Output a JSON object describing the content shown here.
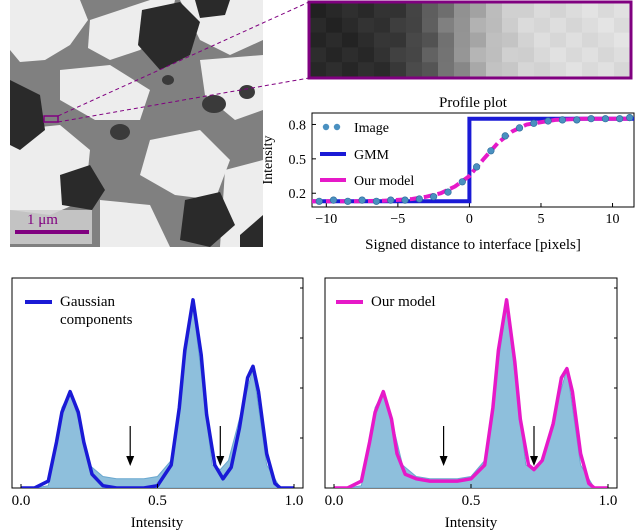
{
  "colors": {
    "purple": "#800080",
    "gmm_blue": "#1a1ad6",
    "model_magenta": "#e619c8",
    "image_dots": "#4a90c0",
    "hist_fill": "#8ebfdc",
    "hist_stroke": "#6aa8cf"
  },
  "micrograph": {
    "scalebar_label": "1 μm"
  },
  "chart_data": [
    {
      "type": "line",
      "title": "Profile plot",
      "xlabel": "Signed distance to interface [pixels]",
      "ylabel": "Intensity",
      "xlim": [
        -11,
        11.5
      ],
      "ylim": [
        0.08,
        0.9
      ],
      "xticks": [
        -10,
        -5,
        0,
        5,
        10
      ],
      "xtick_labels": [
        "−10",
        "−5",
        "0",
        "5",
        "10"
      ],
      "yticks": [
        0.2,
        0.5,
        0.8
      ],
      "ytick_labels": [
        "0.2",
        "0.5",
        "0.8"
      ],
      "legend_position": "top-left",
      "series": [
        {
          "name": "Image",
          "style": "markers",
          "x": [
            -10.5,
            -9.5,
            -8.5,
            -7.5,
            -6.5,
            -5.5,
            -4.5,
            -3.5,
            -2.5,
            -1.5,
            -0.5,
            0.5,
            1.5,
            2.5,
            3.5,
            4.5,
            5.5,
            6.5,
            7.5,
            8.5,
            9.5,
            10.5,
            11.2
          ],
          "y": [
            0.13,
            0.14,
            0.13,
            0.14,
            0.13,
            0.14,
            0.14,
            0.15,
            0.17,
            0.21,
            0.3,
            0.43,
            0.57,
            0.7,
            0.77,
            0.81,
            0.83,
            0.84,
            0.84,
            0.85,
            0.85,
            0.85,
            0.86
          ]
        },
        {
          "name": "GMM",
          "style": "step",
          "x": [
            -11,
            0,
            0,
            11.5
          ],
          "y": [
            0.13,
            0.13,
            0.85,
            0.85
          ]
        },
        {
          "name": "Our model",
          "style": "dashed",
          "x": [
            -11,
            -8,
            -6,
            -4,
            -3,
            -2,
            -1,
            0,
            1,
            2,
            3,
            4,
            6,
            8,
            11.5
          ],
          "y": [
            0.13,
            0.13,
            0.135,
            0.15,
            0.17,
            0.2,
            0.26,
            0.35,
            0.5,
            0.64,
            0.74,
            0.8,
            0.84,
            0.85,
            0.85
          ]
        }
      ]
    },
    {
      "type": "area",
      "xlabel": "Intensity",
      "xlim": [
        0,
        1
      ],
      "xticks": [
        0,
        0.5,
        1
      ],
      "xtick_labels": [
        "0.0",
        "0.5",
        "1.0"
      ],
      "legend_position": "top-left",
      "legend": [
        "Gaussian",
        "components"
      ],
      "peaks": [
        0.18,
        0.63,
        0.85
      ],
      "arrows_at": [
        0.4,
        0.73
      ],
      "series": [
        {
          "name": "histogram",
          "x": [
            0,
            0.05,
            0.1,
            0.15,
            0.18,
            0.21,
            0.25,
            0.3,
            0.35,
            0.4,
            0.45,
            0.5,
            0.55,
            0.6,
            0.63,
            0.66,
            0.7,
            0.73,
            0.76,
            0.8,
            0.85,
            0.9,
            0.95,
            1
          ],
          "y": [
            0,
            0.0,
            0.01,
            0.35,
            0.42,
            0.3,
            0.1,
            0.05,
            0.04,
            0.04,
            0.04,
            0.05,
            0.12,
            0.55,
            0.8,
            0.5,
            0.1,
            0.08,
            0.12,
            0.3,
            0.52,
            0.1,
            0.0,
            0
          ]
        },
        {
          "name": "Gaussian components",
          "x": [
            0,
            0.05,
            0.1,
            0.13,
            0.15,
            0.18,
            0.21,
            0.23,
            0.26,
            0.3,
            0.35,
            0.4,
            0.45,
            0.5,
            0.55,
            0.58,
            0.6,
            0.63,
            0.66,
            0.68,
            0.71,
            0.74,
            0.77,
            0.8,
            0.83,
            0.85,
            0.87,
            0.9,
            0.93,
            0.95,
            1
          ],
          "y": [
            0,
            0.0,
            0.03,
            0.2,
            0.33,
            0.42,
            0.33,
            0.2,
            0.06,
            0.01,
            0.0,
            0.0,
            0.0,
            0.01,
            0.1,
            0.35,
            0.6,
            0.82,
            0.58,
            0.32,
            0.1,
            0.04,
            0.09,
            0.26,
            0.48,
            0.53,
            0.42,
            0.15,
            0.02,
            0.0,
            0
          ]
        }
      ]
    },
    {
      "type": "area",
      "xlabel": "Intensity",
      "xlim": [
        0,
        1
      ],
      "xticks": [
        0,
        0.5,
        1
      ],
      "xtick_labels": [
        "0.0",
        "0.5",
        "1.0"
      ],
      "legend_position": "top-left",
      "legend": [
        "Our model"
      ],
      "peaks": [
        0.18,
        0.63,
        0.85
      ],
      "arrows_at": [
        0.4,
        0.73
      ],
      "series": [
        {
          "name": "histogram",
          "x": [
            0,
            0.05,
            0.1,
            0.15,
            0.18,
            0.21,
            0.25,
            0.3,
            0.35,
            0.4,
            0.45,
            0.5,
            0.55,
            0.6,
            0.63,
            0.66,
            0.7,
            0.73,
            0.76,
            0.8,
            0.85,
            0.9,
            0.95,
            1
          ],
          "y": [
            0,
            0.0,
            0.01,
            0.35,
            0.42,
            0.3,
            0.1,
            0.05,
            0.04,
            0.04,
            0.04,
            0.05,
            0.12,
            0.55,
            0.8,
            0.5,
            0.1,
            0.08,
            0.12,
            0.3,
            0.52,
            0.1,
            0.0,
            0
          ]
        },
        {
          "name": "Our model",
          "x": [
            0,
            0.05,
            0.1,
            0.13,
            0.15,
            0.18,
            0.21,
            0.23,
            0.26,
            0.3,
            0.35,
            0.4,
            0.45,
            0.5,
            0.55,
            0.58,
            0.6,
            0.63,
            0.66,
            0.68,
            0.71,
            0.73,
            0.76,
            0.8,
            0.83,
            0.85,
            0.87,
            0.9,
            0.93,
            0.95,
            1
          ],
          "y": [
            0,
            0.0,
            0.03,
            0.2,
            0.33,
            0.42,
            0.3,
            0.15,
            0.06,
            0.04,
            0.03,
            0.03,
            0.03,
            0.04,
            0.1,
            0.35,
            0.6,
            0.82,
            0.55,
            0.3,
            0.1,
            0.08,
            0.12,
            0.28,
            0.48,
            0.52,
            0.42,
            0.15,
            0.02,
            0.0,
            0
          ]
        }
      ]
    }
  ]
}
